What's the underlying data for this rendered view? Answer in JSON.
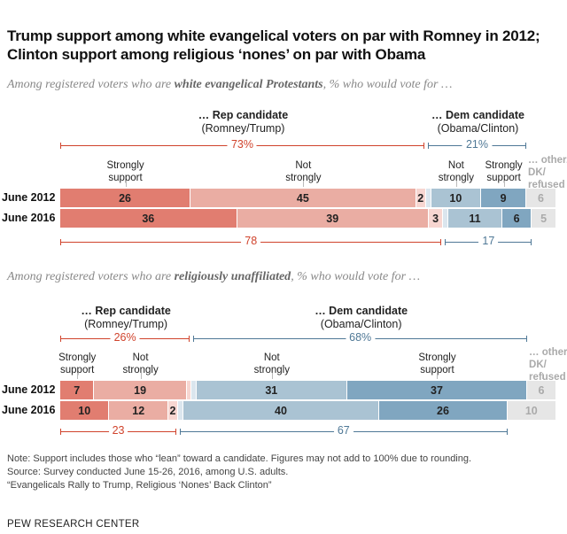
{
  "title": "Trump support among white evangelical voters on par with Romney in 2012; Clinton support among religious ‘nones’ on par with Obama",
  "colors": {
    "rep_strong": "#e17d70",
    "rep_not": "#eaada3",
    "rep_lean": "#f7d6d1",
    "dem_lean": "#dbe6ee",
    "dem_not": "#aac3d3",
    "dem_strong": "#80a6c0",
    "other": "#e6e6e6",
    "rep_text": "#d0432c",
    "dem_text": "#4f7896"
  },
  "chart_data": [
    {
      "type": "bar",
      "stacked": true,
      "orientation": "horizontal",
      "subtitle_pre": "Among registered voters who are ",
      "subtitle_em": "white evangelical Protestants",
      "subtitle_post": ", % who would vote for …",
      "rep_header": "… Rep candidate",
      "rep_sub": "(Romney/Trump)",
      "dem_header": "… Dem candidate",
      "dem_sub": "(Obama/Clinton)",
      "categories_labels": [
        "Strongly\nsupport",
        "Not\nstrongly",
        "",
        "",
        "Not\nstrongly",
        "Strongly\nsupport",
        "… other/\nDK/\nrefused"
      ],
      "series_keys": [
        "rep_strong",
        "rep_not",
        "rep_lean",
        "dem_lean",
        "dem_not",
        "dem_strong",
        "other"
      ],
      "rows": [
        {
          "label": "June 2012",
          "values": [
            26,
            45,
            2,
            1,
            10,
            9,
            6
          ],
          "labels": [
            "26",
            "45",
            "2",
            "",
            "10",
            "9",
            "6"
          ],
          "rep_total": "73%",
          "dem_total": "21%"
        },
        {
          "label": "June 2016",
          "values": [
            36,
            39,
            3,
            1,
            11,
            6,
            5
          ],
          "labels": [
            "36",
            "39",
            "3",
            "",
            "11",
            "6",
            "5"
          ],
          "rep_total": "78",
          "dem_total": "17"
        }
      ]
    },
    {
      "type": "bar",
      "stacked": true,
      "orientation": "horizontal",
      "subtitle_pre": "Among registered voters who are ",
      "subtitle_em": "religiously unaffiliated",
      "subtitle_post": ", % who would vote for …",
      "rep_header": "… Rep candidate",
      "rep_sub": "(Romney/Trump)",
      "dem_header": "… Dem candidate",
      "dem_sub": "(Obama/Clinton)",
      "categories_labels": [
        "Strongly\nsupport",
        "Not\nstrongly",
        "",
        "",
        "Not\nstrongly",
        "Strongly\nsupport",
        "… other/\nDK/\nrefused"
      ],
      "series_keys": [
        "rep_strong",
        "rep_not",
        "rep_lean",
        "dem_lean",
        "dem_not",
        "dem_strong",
        "other"
      ],
      "rows": [
        {
          "label": "June 2012",
          "values": [
            7,
            19,
            1,
            1,
            31,
            37,
            6
          ],
          "labels": [
            "7",
            "19",
            "",
            "",
            "31",
            "37",
            "6"
          ],
          "rep_total": "26%",
          "dem_total": "68%"
        },
        {
          "label": "June 2016",
          "values": [
            10,
            12,
            2,
            1,
            40,
            26,
            10
          ],
          "labels": [
            "10",
            "12",
            "2",
            "",
            "40",
            "26",
            "10"
          ],
          "rep_total": "23",
          "dem_total": "67"
        }
      ]
    }
  ],
  "notes": [
    "Note: Support includes those who “lean” toward a candidate. Figures may not add to 100% due to rounding.",
    "Source: Survey conducted June 15-26, 2016, among U.S. adults.",
    "“Evangelicals Rally to Trump, Religious ‘Nones’ Back Clinton”"
  ],
  "footer": "PEW RESEARCH CENTER"
}
